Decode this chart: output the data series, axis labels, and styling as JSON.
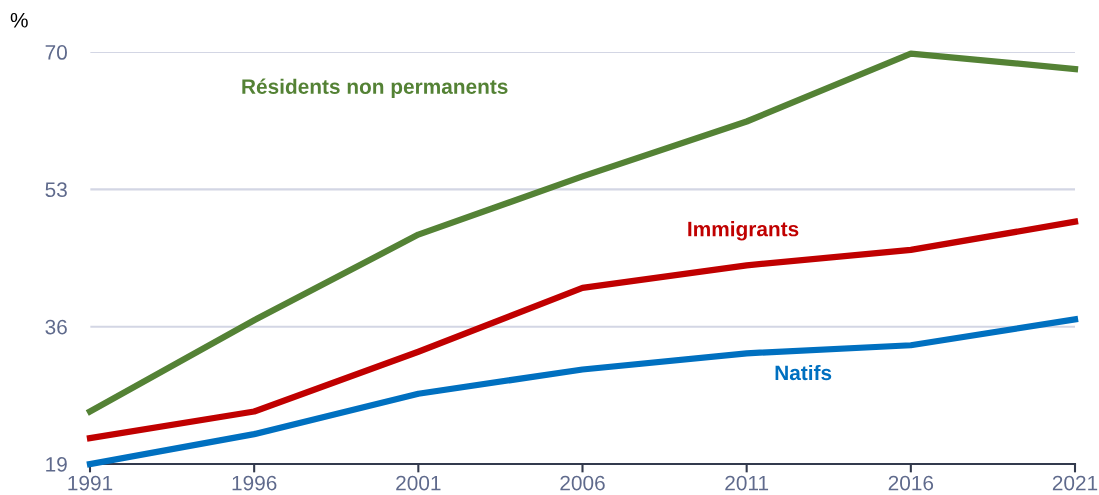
{
  "chart_data": {
    "type": "line",
    "ylabel": "%",
    "x": [
      1991,
      1996,
      2001,
      2006,
      2011,
      2016,
      2021
    ],
    "series": [
      {
        "name": "Résidents non permanents",
        "color": "#548235",
        "values": [
          25.5,
          36.8,
          47.4,
          54.6,
          61.4,
          69.8,
          67.9
        ]
      },
      {
        "name": "Immigrants",
        "color": "#c00000",
        "values": [
          22.2,
          25.5,
          32.9,
          40.8,
          43.6,
          45.5,
          49.0
        ]
      },
      {
        "name": "Natifs",
        "color": "#0070c0",
        "values": [
          19.0,
          22.7,
          27.7,
          30.7,
          32.7,
          33.7,
          36.9
        ]
      }
    ],
    "xlim": [
      1991,
      2021
    ],
    "xticks": [
      1991,
      1996,
      2001,
      2006,
      2011,
      2016,
      2021
    ],
    "ylim": [
      19,
      70
    ],
    "yticks": [
      19,
      36,
      53,
      70
    ],
    "grid": "y",
    "marker": "none",
    "line_style": "solid",
    "legend": false
  }
}
